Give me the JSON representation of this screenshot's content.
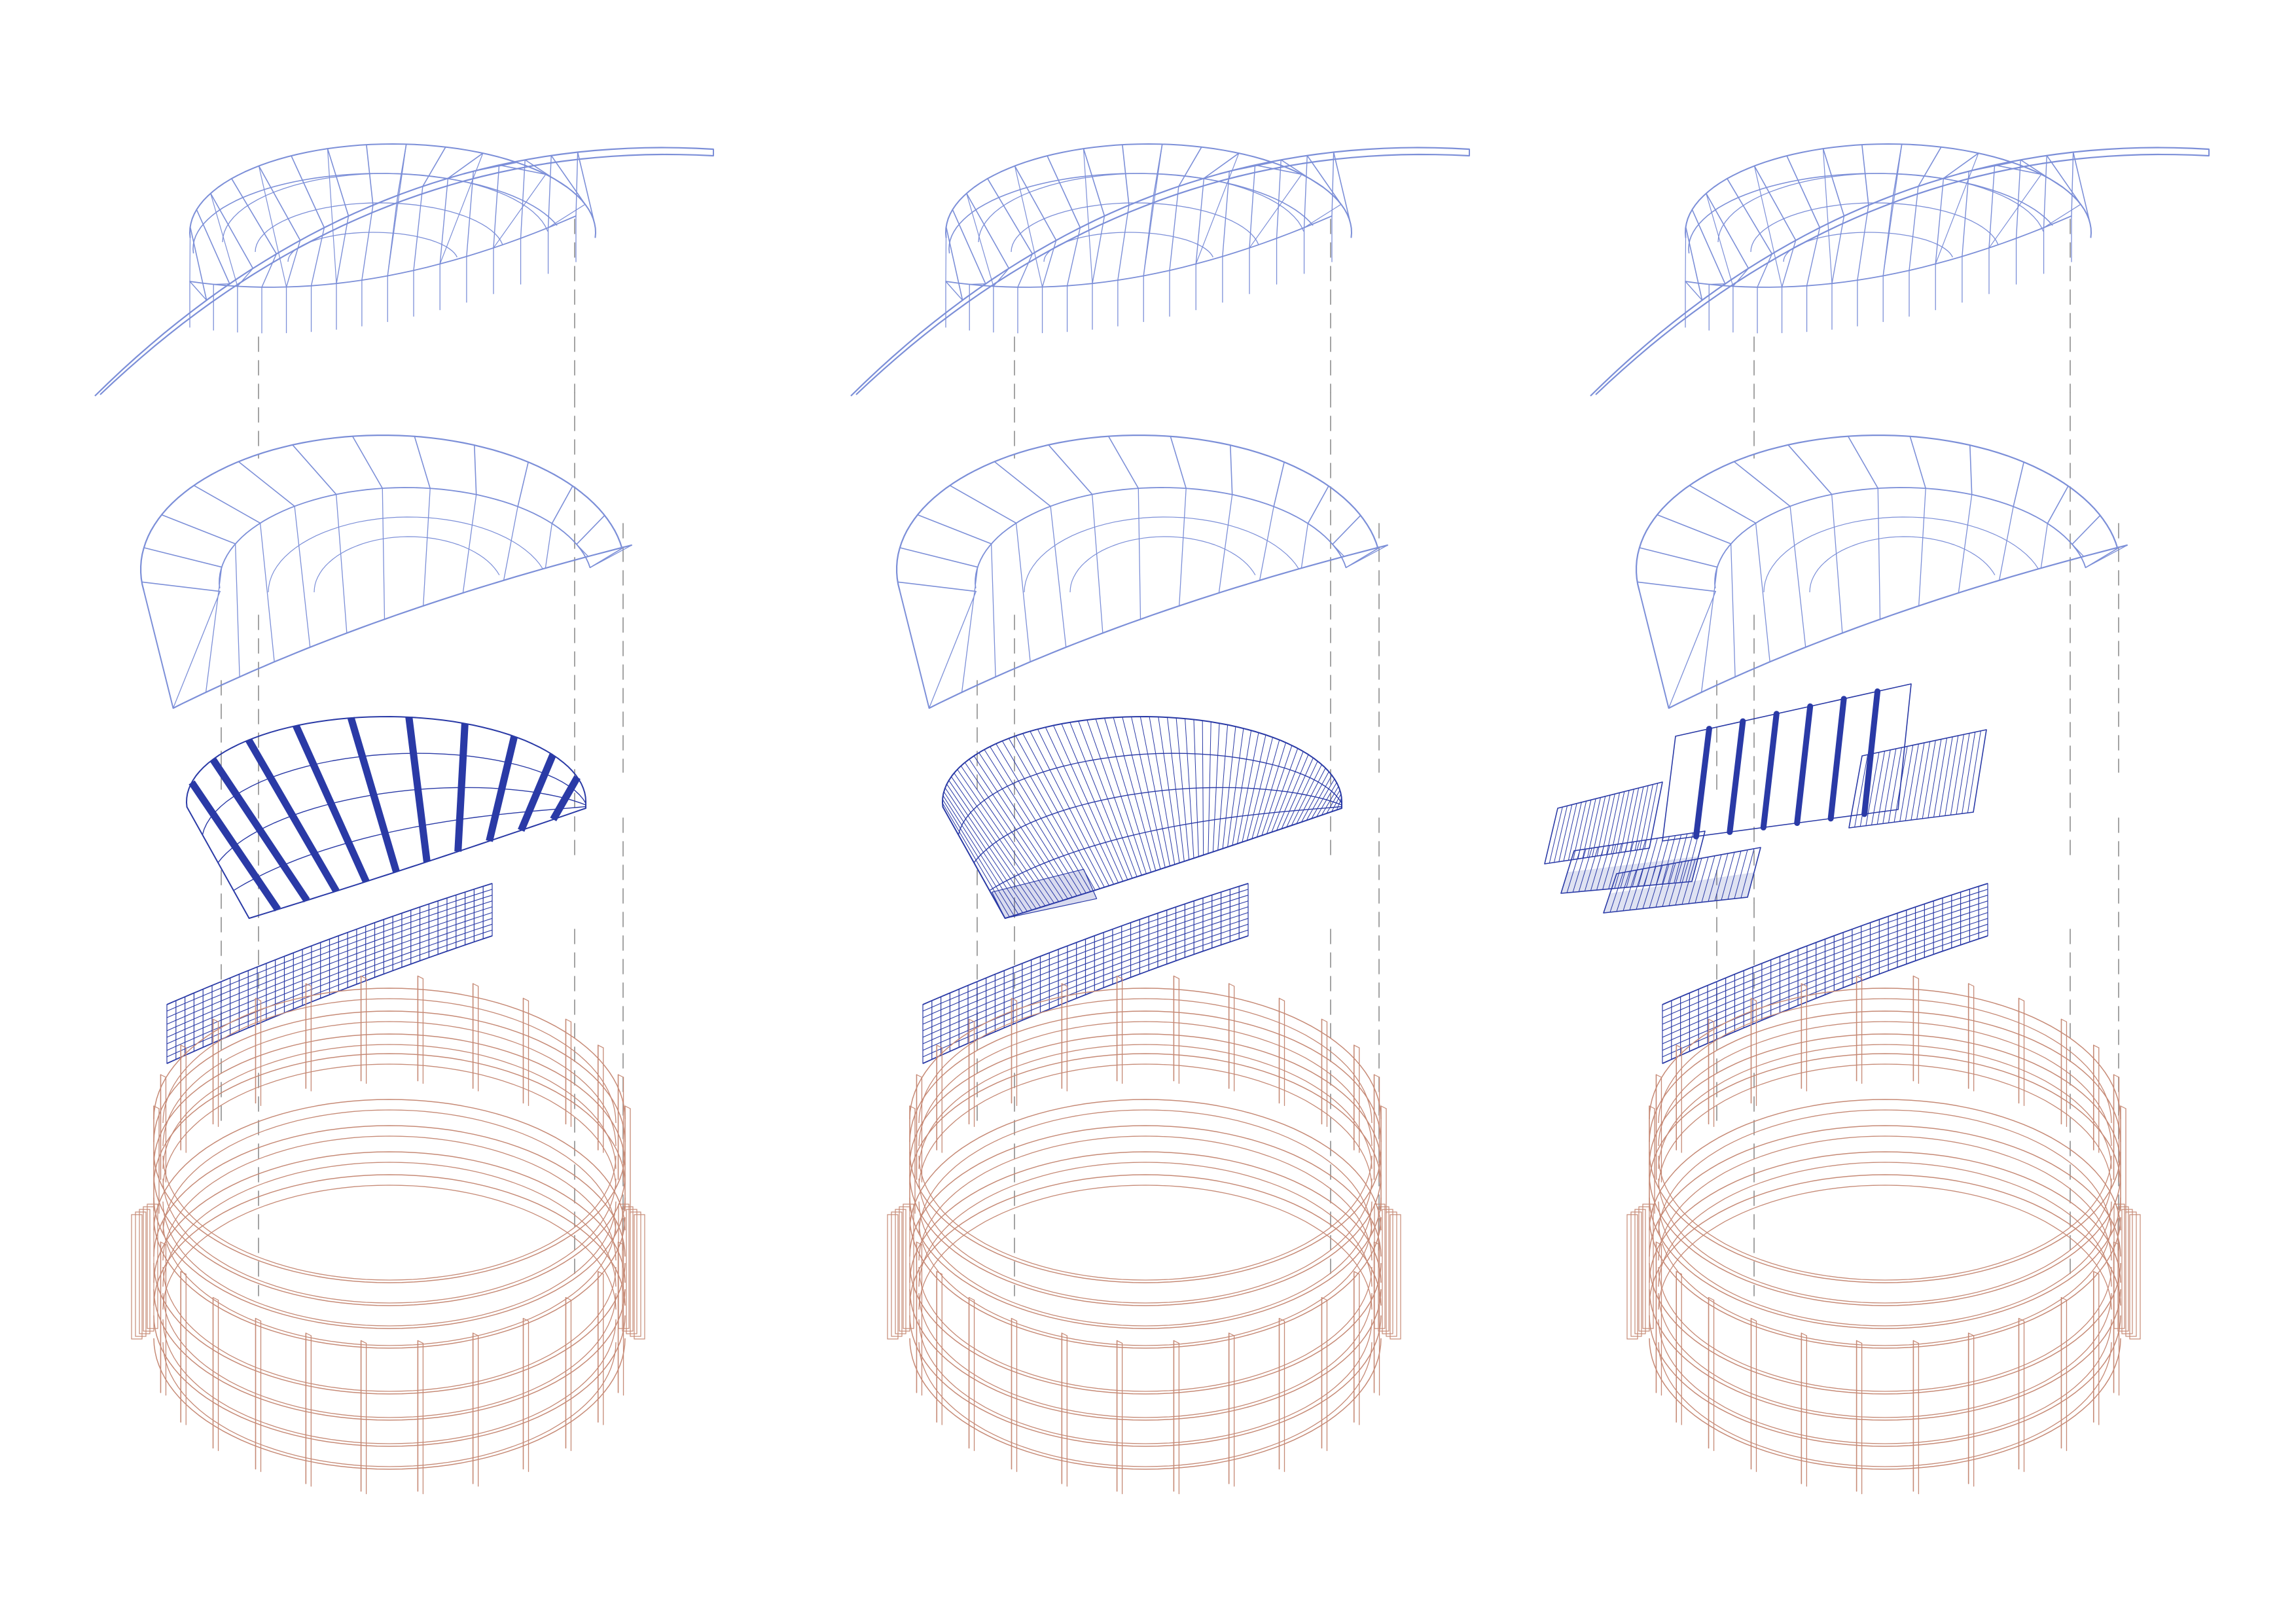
{
  "diagram": {
    "kind": "exploded-axonometric",
    "variants": [
      {
        "id": "variant-1",
        "cladding_pattern": "radial-ribs"
      },
      {
        "id": "variant-2",
        "cladding_pattern": "dense-slats"
      },
      {
        "id": "variant-3",
        "cladding_pattern": "fragmented-panels"
      }
    ],
    "layers": [
      {
        "id": "roof-truss",
        "icon": "truss-icon"
      },
      {
        "id": "roof-shell",
        "icon": "shell-grid-icon"
      },
      {
        "id": "cladding",
        "icon": "cladding-icon"
      },
      {
        "id": "facade-mesh",
        "icon": "mesh-icon"
      },
      {
        "id": "timber-ring",
        "icon": "ring-frame-icon"
      }
    ],
    "colors": {
      "roof_line": "#7c8fd8",
      "cladding_line": "#2a3aa6",
      "timber_line": "#c68a76",
      "guide_line": "#9a9a9a",
      "background": "#ffffff"
    }
  }
}
